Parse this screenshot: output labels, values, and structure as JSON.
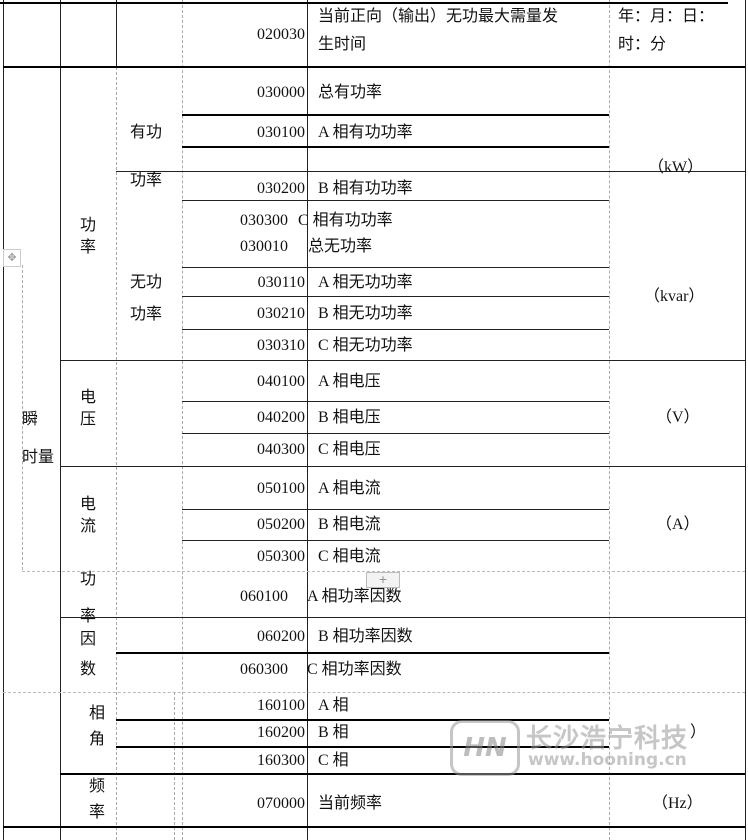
{
  "rows": [
    {
      "code": "020030",
      "desc_line1": "当前正向（输出）无功最大需量发",
      "desc_line2": "生时间",
      "unit_line1": "年：月：日：",
      "unit_line2": "时：分"
    },
    {
      "code": "030000",
      "desc": "总有功率"
    },
    {
      "code": "030100",
      "desc": "A 相有功功率"
    },
    {
      "code": "030200",
      "desc": "B 相有功功率"
    },
    {
      "code": "030300",
      "desc": "C 相有功功率"
    },
    {
      "code": "030010",
      "desc": "总无功率"
    },
    {
      "code": "030110",
      "desc": "A 相无功功率"
    },
    {
      "code": "030210",
      "desc": "B 相无功功率"
    },
    {
      "code": "030310",
      "desc": "C 相无功功率"
    },
    {
      "code": "040100",
      "desc": "A 相电压"
    },
    {
      "code": "040200",
      "desc": "B 相电压"
    },
    {
      "code": "040300",
      "desc": "C 相电压"
    },
    {
      "code": "050100",
      "desc": "A 相电流"
    },
    {
      "code": "050200",
      "desc": "B 相电流"
    },
    {
      "code": "050300",
      "desc": "C 相电流"
    },
    {
      "code": "060100",
      "desc": "A 相功率因数"
    },
    {
      "code": "060200",
      "desc": "B 相功率因数"
    },
    {
      "code": "060300",
      "desc": "C 相功率因数"
    },
    {
      "code": "160100",
      "desc": "A 相"
    },
    {
      "code": "160200",
      "desc": "B 相"
    },
    {
      "code": "160300",
      "desc": "C 相"
    },
    {
      "code": "070000",
      "desc": "当前频率"
    }
  ],
  "labels": {
    "instant": [
      "瞬",
      "时量"
    ],
    "power": [
      "功",
      "率"
    ],
    "active": [
      "有功",
      "功率"
    ],
    "reactive": [
      "无功",
      "功率"
    ],
    "voltage": [
      "电",
      "压"
    ],
    "current": [
      "电",
      "流"
    ],
    "pf": [
      "功",
      "率",
      "因",
      "数"
    ],
    "angle": [
      "相",
      "角"
    ],
    "freq": [
      "频",
      "率"
    ]
  },
  "units": {
    "kw": "（kW）",
    "kvar": "（kvar）",
    "v": "（V）",
    "a": "（A）",
    "hz": "（Hz）",
    "angle_tail": "）"
  },
  "watermark": {
    "logo": "HN",
    "name": "长沙浩宁科技",
    "url": "www.hooning.cn"
  },
  "icons": {
    "move_handle": "move-icon",
    "add_row": "plus-icon"
  }
}
